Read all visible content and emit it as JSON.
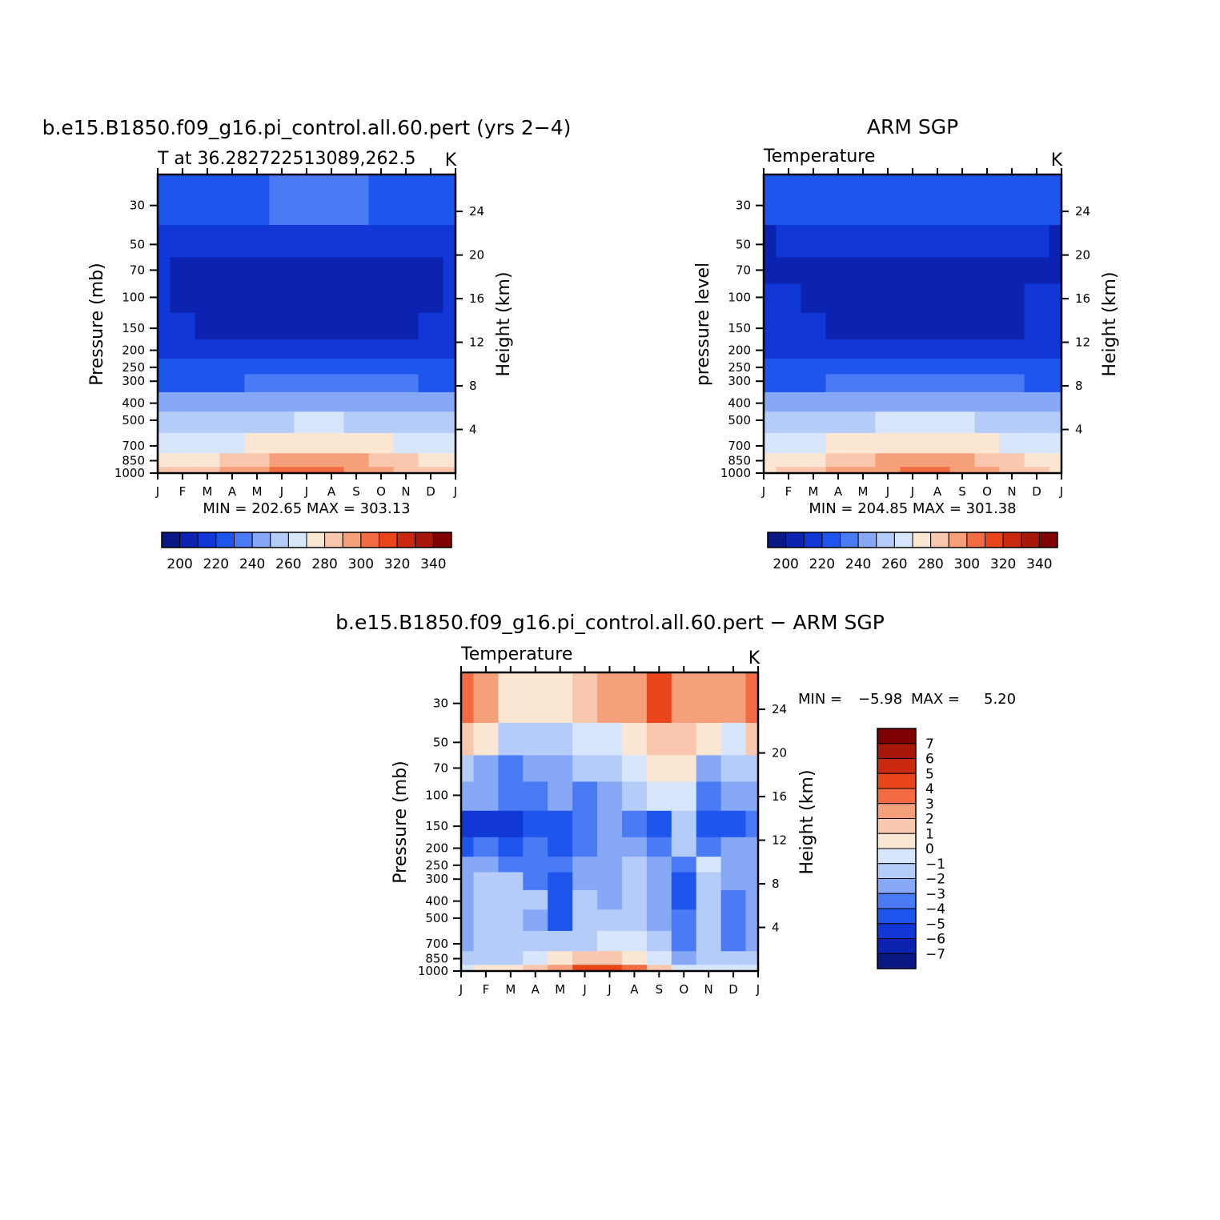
{
  "months": [
    "J",
    "F",
    "M",
    "A",
    "M",
    "J",
    "J",
    "A",
    "S",
    "O",
    "N",
    "D",
    "J"
  ],
  "pressure_ticks": [
    "30",
    "50",
    "70",
    "100",
    "150",
    "200",
    "250",
    "300",
    "400",
    "500",
    "700",
    "850",
    "1000"
  ],
  "pressure_values": [
    30,
    50,
    70,
    100,
    150,
    200,
    250,
    300,
    400,
    500,
    700,
    850,
    1000
  ],
  "height_ticks": [
    "24",
    "20",
    "16",
    "12",
    "8",
    "4"
  ],
  "height_values": [
    24,
    20,
    16,
    12,
    8,
    4
  ],
  "abs_colors": [
    "#0b1785",
    "#0b23b0",
    "#1138d6",
    "#1e55ec",
    "#4a7bf5",
    "#86a8f7",
    "#b6ccf8",
    "#d8e6fb",
    "#fbe6d3",
    "#f9c7ae",
    "#f5a07a",
    "#f26b43",
    "#e8451a",
    "#c92a0f",
    "#a7180a",
    "#7f0000"
  ],
  "diff_colors": [
    "#0b1785",
    "#0b23b0",
    "#1138d6",
    "#1e55ec",
    "#4a7bf5",
    "#86a8f7",
    "#b6ccf8",
    "#d8e6fb",
    "#fbe6d3",
    "#f9c7ae",
    "#f5a07a",
    "#f26b43",
    "#e8451a",
    "#c92a0f",
    "#a7180a",
    "#7f0000"
  ],
  "chart_data": [
    {
      "type": "heatmap",
      "title": "b.e15.B1850.f09_g16.pi_control.all.60.pert (yrs 2−4)",
      "subtitle": "T at 36.282722513089,262.5",
      "units": "K",
      "ylabel": "Pressure (mb)",
      "y2label": "Height (km)",
      "stats": "MIN = 202.65 MAX = 303.13",
      "x": [
        "J",
        "F",
        "M",
        "A",
        "M",
        "J",
        "J",
        "A",
        "S",
        "O",
        "N",
        "D",
        "J"
      ],
      "y": [
        30,
        50,
        70,
        100,
        150,
        200,
        250,
        300,
        400,
        500,
        700,
        850,
        1000
      ],
      "z": [
        [
          222,
          224,
          226,
          228,
          229,
          230,
          231,
          231,
          230,
          229,
          226,
          224,
          222
        ],
        [
          218,
          216,
          214,
          216,
          218,
          218,
          218,
          218,
          219,
          219,
          219,
          218,
          218
        ],
        [
          211,
          208,
          206,
          206,
          207,
          207,
          207,
          207,
          207,
          207,
          207,
          208,
          211
        ],
        [
          210,
          208,
          206,
          205,
          205,
          204,
          204,
          204,
          205,
          205,
          206,
          208,
          210
        ],
        [
          213,
          212,
          207,
          205,
          205,
          205,
          206,
          206,
          207,
          208,
          209,
          211,
          213
        ],
        [
          216,
          216,
          214,
          213,
          213,
          215,
          216,
          216,
          216,
          216,
          216,
          216,
          216
        ],
        [
          223,
          223,
          222,
          222,
          223,
          225,
          226,
          226,
          226,
          225,
          224,
          223,
          223
        ],
        [
          228,
          228,
          228,
          229,
          230,
          233,
          234,
          234,
          233,
          231,
          230,
          228,
          228
        ],
        [
          240,
          240,
          241,
          242,
          244,
          247,
          248,
          248,
          247,
          244,
          242,
          240,
          240
        ],
        [
          250,
          250,
          251,
          253,
          256,
          259,
          260,
          260,
          259,
          256,
          253,
          251,
          250
        ],
        [
          263,
          264,
          266,
          269,
          272,
          276,
          278,
          278,
          276,
          272,
          268,
          265,
          263
        ],
        [
          274,
          275,
          278,
          282,
          287,
          292,
          294,
          294,
          291,
          286,
          281,
          277,
          274
        ],
        [
          281,
          283,
          286,
          290,
          296,
          300,
          302,
          303,
          299,
          293,
          287,
          283,
          281
        ]
      ],
      "levels": [
        200,
        210,
        220,
        230,
        240,
        250,
        260,
        270,
        280,
        290,
        300,
        310,
        320,
        330,
        340
      ],
      "colorbar_labels": [
        "200",
        "220",
        "240",
        "260",
        "280",
        "300",
        "320",
        "340"
      ]
    },
    {
      "type": "heatmap",
      "title": "ARM SGP",
      "subtitle": "Temperature",
      "units": "K",
      "ylabel": "pressure level",
      "y2label": "Height (km)",
      "stats": "MIN = 204.85 MAX = 301.38",
      "x": [
        "J",
        "F",
        "M",
        "A",
        "M",
        "J",
        "J",
        "A",
        "S",
        "O",
        "N",
        "D",
        "J"
      ],
      "y": [
        30,
        50,
        70,
        100,
        150,
        200,
        250,
        300,
        400,
        500,
        700,
        850,
        1000
      ],
      "z": [
        [
          220,
          221,
          222,
          224,
          226,
          228,
          229,
          229,
          228,
          226,
          224,
          222,
          220
        ],
        [
          208,
          212,
          214,
          214,
          216,
          217,
          217,
          217,
          217,
          216,
          214,
          212,
          208
        ],
        [
          207,
          207,
          206,
          207,
          207,
          207,
          207,
          207,
          207,
          207,
          207,
          207,
          207
        ],
        [
          211,
          210,
          209,
          208,
          207,
          206,
          205,
          206,
          207,
          208,
          209,
          210,
          211
        ],
        [
          213,
          212,
          210,
          208,
          207,
          206,
          206,
          206,
          207,
          208,
          209,
          211,
          213
        ],
        [
          217,
          217,
          216,
          216,
          216,
          218,
          219,
          219,
          218,
          217,
          217,
          217,
          217
        ],
        [
          224,
          223,
          223,
          224,
          225,
          227,
          228,
          228,
          227,
          226,
          225,
          224,
          224
        ],
        [
          229,
          229,
          229,
          230,
          232,
          234,
          235,
          235,
          234,
          232,
          231,
          229,
          229
        ],
        [
          240,
          240,
          241,
          243,
          245,
          248,
          249,
          249,
          248,
          245,
          243,
          241,
          240
        ],
        [
          250,
          251,
          252,
          254,
          257,
          260,
          262,
          262,
          260,
          257,
          254,
          252,
          250
        ],
        [
          263,
          265,
          267,
          270,
          273,
          277,
          279,
          279,
          277,
          273,
          269,
          266,
          263
        ],
        [
          273,
          275,
          278,
          282,
          287,
          291,
          294,
          294,
          291,
          286,
          281,
          277,
          273
        ],
        [
          279,
          281,
          285,
          290,
          295,
          299,
          301,
          301,
          298,
          292,
          286,
          282,
          279
        ]
      ],
      "levels": [
        200,
        210,
        220,
        230,
        240,
        250,
        260,
        270,
        280,
        290,
        300,
        310,
        320,
        330,
        340
      ],
      "colorbar_labels": [
        "200",
        "220",
        "240",
        "260",
        "280",
        "300",
        "320",
        "340"
      ]
    },
    {
      "type": "heatmap",
      "title": "b.e15.B1850.f09_g16.pi_control.all.60.pert − ARM SGP",
      "subtitle": "Temperature",
      "units": "K",
      "ylabel": "Pressure (mb)",
      "y2label": "Height (km)",
      "stats_min_label": "MIN =",
      "stats_min": "−5.98",
      "stats_max_label": "MAX =",
      "stats_max": "5.20",
      "x": [
        "J",
        "F",
        "M",
        "A",
        "M",
        "J",
        "J",
        "A",
        "S",
        "O",
        "N",
        "D",
        "J"
      ],
      "y": [
        30,
        50,
        70,
        100,
        150,
        200,
        250,
        300,
        400,
        500,
        700,
        850,
        1000
      ],
      "z": [
        [
          3.5,
          2.8,
          0.8,
          0.5,
          0.6,
          1.2,
          2.0,
          2.4,
          4.6,
          2.8,
          2.4,
          2.8,
          3.5
        ],
        [
          1.5,
          0.3,
          -1.2,
          -2.0,
          -1.5,
          -1.0,
          -0.6,
          0.2,
          1.0,
          1.8,
          0.6,
          -0.5,
          1.5
        ],
        [
          -1.8,
          -2.4,
          -3.2,
          -2.6,
          -2.2,
          -2.0,
          -1.5,
          -0.6,
          0.4,
          0.6,
          -2.5,
          -2.0,
          -1.8
        ],
        [
          -2.6,
          -3.0,
          -3.8,
          -3.2,
          -2.8,
          -3.4,
          -2.2,
          -1.6,
          -0.8,
          -0.6,
          -4.0,
          -3.0,
          -2.6
        ],
        [
          -5.2,
          -5.6,
          -5.4,
          -4.6,
          -4.2,
          -3.6,
          -3.0,
          -3.2,
          -4.2,
          -1.2,
          -4.6,
          -4.2,
          -3.2
        ],
        [
          -4.3,
          -3.6,
          -4.2,
          -4.0,
          -4.1,
          -3.2,
          -2.8,
          -2.6,
          -3.6,
          -1.4,
          -3.2,
          -3.0,
          -3.0
        ],
        [
          -2.8,
          -2.2,
          -3.2,
          -3.6,
          -4.0,
          -3.0,
          -2.4,
          -1.8,
          -2.4,
          -3.1,
          -1.0,
          -2.2,
          -2.8
        ],
        [
          -2.4,
          -1.4,
          -1.8,
          -3.2,
          -4.2,
          -2.2,
          -2.8,
          -1.6,
          -2.2,
          -4.2,
          -1.8,
          -2.4,
          -2.4
        ],
        [
          -2.6,
          -1.2,
          -1.4,
          -2.0,
          -4.4,
          -1.8,
          -2.4,
          -1.6,
          -2.4,
          -4.6,
          -2.0,
          -3.2,
          -2.6
        ],
        [
          -2.2,
          -1.2,
          -1.4,
          -2.4,
          -4.2,
          -2.0,
          -1.4,
          -1.6,
          -2.2,
          -3.8,
          -1.8,
          -3.6,
          -2.2
        ],
        [
          -2.2,
          -1.6,
          -1.6,
          -1.8,
          -1.6,
          -1.4,
          -0.8,
          -0.6,
          -2.0,
          -3.2,
          -1.8,
          -3.4,
          -2.2
        ],
        [
          -1.6,
          -1.8,
          -1.8,
          -1.0,
          0.5,
          1.2,
          1.0,
          0.6,
          -0.8,
          -2.2,
          -1.2,
          -2.0,
          -1.6
        ],
        [
          -0.5,
          0.5,
          0.5,
          1.0,
          2.8,
          4.4,
          4.0,
          3.0,
          1.5,
          -0.5,
          -0.5,
          -0.5,
          -0.5
        ]
      ],
      "levels": [
        -7,
        -6,
        -5,
        -4,
        -3,
        -2,
        -1,
        0,
        1,
        2,
        3,
        4,
        5,
        6,
        7
      ],
      "colorbar_labels": [
        "7",
        "6",
        "5",
        "4",
        "3",
        "2",
        "1",
        "0",
        "−1",
        "−2",
        "−3",
        "−4",
        "−5",
        "−6",
        "−7"
      ]
    }
  ]
}
